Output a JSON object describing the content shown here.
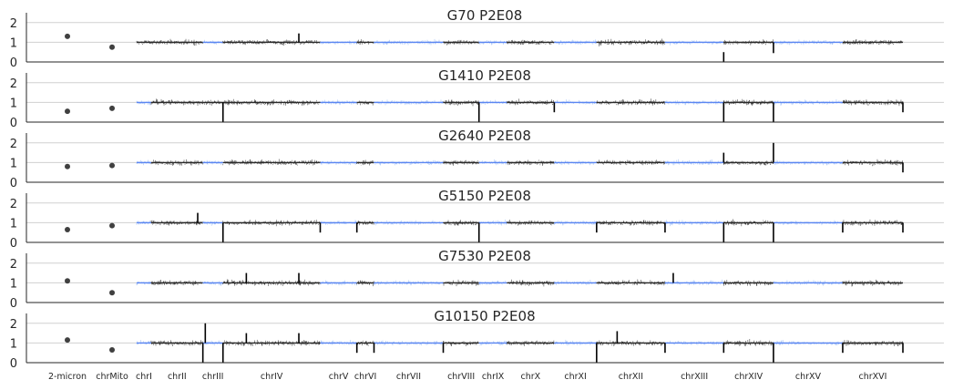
{
  "chart_data": {
    "type": "line",
    "description_axes": {
      "ylim": [
        0,
        2.5
      ],
      "yticks": [
        0,
        1,
        2
      ],
      "grid": "horizontal"
    },
    "colors": {
      "dark_segment": "#4a4a4a",
      "light_segment": "#a8c4f5",
      "baseline": "#5b86f2",
      "point": "#404040",
      "grid": "#d0d0d0",
      "axis": "#262626"
    },
    "chromosomes": [
      {
        "name": "2-micron",
        "type": "point"
      },
      {
        "name": "chrMito",
        "type": "point"
      },
      {
        "name": "chrI",
        "length": 230
      },
      {
        "name": "chrII",
        "length": 813
      },
      {
        "name": "chrIII",
        "length": 317
      },
      {
        "name": "chrIV",
        "length": 1532
      },
      {
        "name": "chrV",
        "length": 577
      },
      {
        "name": "chrVI",
        "length": 270
      },
      {
        "name": "chrVII",
        "length": 1091
      },
      {
        "name": "chrVIII",
        "length": 563
      },
      {
        "name": "chrIX",
        "length": 440
      },
      {
        "name": "chrX",
        "length": 746
      },
      {
        "name": "chrXI",
        "length": 667
      },
      {
        "name": "chrXII",
        "length": 1078
      },
      {
        "name": "chrXIII",
        "length": 924
      },
      {
        "name": "chrXIV",
        "length": 784
      },
      {
        "name": "chrXV",
        "length": 1091
      },
      {
        "name": "chrXVI",
        "length": 948
      }
    ],
    "panels": [
      {
        "title": "G70 P2E08",
        "points": {
          "2-micron": 1.3,
          "chrMito": 0.75
        },
        "dark": [
          "chrI",
          "chrII",
          "chrIV",
          "chrVI",
          "chrVIII",
          "chrX",
          "chrXII",
          "chrXIV",
          "chrXVI"
        ],
        "spikes": [
          {
            "chr": "chrIV",
            "pos": 0.78,
            "from": 1.0,
            "to": 1.45
          },
          {
            "chr": "chrXIV",
            "pos": 0.0,
            "from": 0.5,
            "to": 0.0
          },
          {
            "chr": "chrXIV",
            "pos": 1.0,
            "from": 1.0,
            "to": 0.45
          }
        ]
      },
      {
        "title": "G1410 P2E08",
        "points": {
          "2-micron": 0.55,
          "chrMito": 0.7
        },
        "dark": [
          "chrII",
          "chrIII",
          "chrIV",
          "chrVI",
          "chrVIII",
          "chrX",
          "chrXII",
          "chrXIV",
          "chrXVI"
        ],
        "spikes": [
          {
            "chr": "chrIII",
            "pos": 1.0,
            "from": 1.0,
            "to": 0.0
          },
          {
            "chr": "chrVIII",
            "pos": 1.0,
            "from": 1.0,
            "to": 0.0
          },
          {
            "chr": "chrX",
            "pos": 1.0,
            "from": 1.0,
            "to": 0.5
          },
          {
            "chr": "chrXIV",
            "pos": 0.0,
            "from": 1.0,
            "to": 0.0
          },
          {
            "chr": "chrXIV",
            "pos": 1.0,
            "from": 1.0,
            "to": 0.0
          },
          {
            "chr": "chrXVI",
            "pos": 1.0,
            "from": 1.0,
            "to": 0.5
          }
        ]
      },
      {
        "title": "G2640 P2E08",
        "points": {
          "2-micron": 0.8,
          "chrMito": 0.85
        },
        "dark": [
          "chrII",
          "chrIV",
          "chrVI",
          "chrVIII",
          "chrX",
          "chrXII",
          "chrXIV",
          "chrXVI"
        ],
        "spikes": [
          {
            "chr": "chrXIV",
            "pos": 0.0,
            "from": 1.0,
            "to": 1.5
          },
          {
            "chr": "chrXIV",
            "pos": 1.0,
            "from": 1.0,
            "to": 2.0
          },
          {
            "chr": "chrXVI",
            "pos": 1.0,
            "from": 1.0,
            "to": 0.5
          }
        ]
      },
      {
        "title": "G5150 P2E08",
        "points": {
          "2-micron": 0.65,
          "chrMito": 0.85
        },
        "dark": [
          "chrII",
          "chrIV",
          "chrVI",
          "chrVIII",
          "chrX",
          "chrXII",
          "chrXIV",
          "chrXVI"
        ],
        "spikes": [
          {
            "chr": "chrII",
            "pos": 0.9,
            "from": 1.0,
            "to": 1.5
          },
          {
            "chr": "chrIII",
            "pos": 1.0,
            "from": 1.0,
            "to": 0.0
          },
          {
            "chr": "chrV",
            "pos": 0.0,
            "from": 1.0,
            "to": 0.5
          },
          {
            "chr": "chrVI",
            "pos": 0.0,
            "from": 1.0,
            "to": 0.5
          },
          {
            "chr": "chrVIII",
            "pos": 1.0,
            "from": 1.0,
            "to": 0.0
          },
          {
            "chr": "chrXI",
            "pos": 1.0,
            "from": 1.0,
            "to": 0.5
          },
          {
            "chr": "chrXIII",
            "pos": 0.0,
            "from": 1.0,
            "to": 0.5
          },
          {
            "chr": "chrXIV",
            "pos": 0.0,
            "from": 1.0,
            "to": 0.0
          },
          {
            "chr": "chrXIV",
            "pos": 1.0,
            "from": 1.0,
            "to": 0.0
          },
          {
            "chr": "chrXVI",
            "pos": 0.0,
            "from": 1.0,
            "to": 0.5
          },
          {
            "chr": "chrXVI",
            "pos": 1.0,
            "from": 1.0,
            "to": 0.5
          }
        ]
      },
      {
        "title": "G7530 P2E08",
        "points": {
          "2-micron": 1.1,
          "chrMito": 0.5
        },
        "dark": [
          "chrII",
          "chrIV",
          "chrVI",
          "chrVIII",
          "chrX",
          "chrXII",
          "chrXIV",
          "chrXVI"
        ],
        "spikes": [
          {
            "chr": "chrIV",
            "pos": 0.24,
            "from": 1.0,
            "to": 1.5
          },
          {
            "chr": "chrIV",
            "pos": 0.78,
            "from": 1.0,
            "to": 1.5
          },
          {
            "chr": "chrXIII",
            "pos": 0.14,
            "from": 1.0,
            "to": 1.5
          }
        ]
      },
      {
        "title": "G10150 P2E08",
        "points": {
          "2-micron": 1.15,
          "chrMito": 0.65
        },
        "dark": [
          "chrII",
          "chrIV",
          "chrVI",
          "chrVIII",
          "chrX",
          "chrXII",
          "chrXIV",
          "chrXVI"
        ],
        "spikes": [
          {
            "chr": "chrII",
            "pos": 1.0,
            "from": 1.0,
            "to": 0.0
          },
          {
            "chr": "chrIII",
            "pos": 0.12,
            "from": 1.0,
            "to": 2.0
          },
          {
            "chr": "chrIII",
            "pos": 1.0,
            "from": 1.0,
            "to": 0.0
          },
          {
            "chr": "chrIV",
            "pos": 0.24,
            "from": 1.0,
            "to": 1.5
          },
          {
            "chr": "chrIV",
            "pos": 0.78,
            "from": 1.0,
            "to": 1.5
          },
          {
            "chr": "chrVI",
            "pos": 0.0,
            "from": 1.0,
            "to": 0.5
          },
          {
            "chr": "chrVI",
            "pos": 1.0,
            "from": 1.0,
            "to": 0.5
          },
          {
            "chr": "chrVIII",
            "pos": 0.0,
            "from": 1.0,
            "to": 0.5
          },
          {
            "chr": "chrXI",
            "pos": 1.0,
            "from": 1.0,
            "to": 0.0
          },
          {
            "chr": "chrXII",
            "pos": 0.3,
            "from": 1.0,
            "to": 1.6
          },
          {
            "chr": "chrXIII",
            "pos": 0.0,
            "from": 1.0,
            "to": 0.5
          },
          {
            "chr": "chrXIV",
            "pos": 0.0,
            "from": 1.0,
            "to": 0.5
          },
          {
            "chr": "chrXIV",
            "pos": 1.0,
            "from": 1.0,
            "to": 0.0
          },
          {
            "chr": "chrXVI",
            "pos": 0.0,
            "from": 1.0,
            "to": 0.5
          },
          {
            "chr": "chrXVI",
            "pos": 1.0,
            "from": 1.0,
            "to": 0.5
          }
        ]
      }
    ]
  }
}
